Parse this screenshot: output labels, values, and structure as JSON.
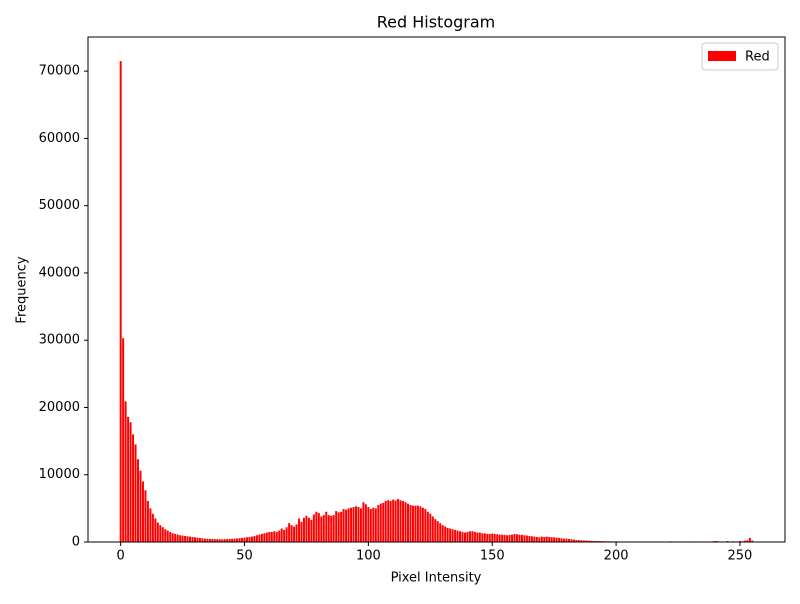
{
  "chart_data": {
    "type": "bar",
    "title": "Red Histogram",
    "x_label": "Pixel Intensity",
    "y_label": "Frequency",
    "x": [
      0,
      1,
      2,
      3,
      4,
      5,
      6,
      7,
      8,
      9,
      10,
      11,
      12,
      13,
      14,
      15,
      16,
      17,
      18,
      19,
      20,
      21,
      22,
      23,
      24,
      25,
      26,
      27,
      28,
      29,
      30,
      31,
      32,
      33,
      34,
      35,
      36,
      37,
      38,
      39,
      40,
      41,
      42,
      43,
      44,
      45,
      46,
      47,
      48,
      49,
      50,
      51,
      52,
      53,
      54,
      55,
      56,
      57,
      58,
      59,
      60,
      61,
      62,
      63,
      64,
      65,
      66,
      67,
      68,
      69,
      70,
      71,
      72,
      73,
      74,
      75,
      76,
      77,
      78,
      79,
      80,
      81,
      82,
      83,
      84,
      85,
      86,
      87,
      88,
      89,
      90,
      91,
      92,
      93,
      94,
      95,
      96,
      97,
      98,
      99,
      100,
      101,
      102,
      103,
      104,
      105,
      106,
      107,
      108,
      109,
      110,
      111,
      112,
      113,
      114,
      115,
      116,
      117,
      118,
      119,
      120,
      121,
      122,
      123,
      124,
      125,
      126,
      127,
      128,
      129,
      130,
      131,
      132,
      133,
      134,
      135,
      136,
      137,
      138,
      139,
      140,
      141,
      142,
      143,
      144,
      145,
      146,
      147,
      148,
      149,
      150,
      151,
      152,
      153,
      154,
      155,
      156,
      157,
      158,
      159,
      160,
      161,
      162,
      163,
      164,
      165,
      166,
      167,
      168,
      169,
      170,
      171,
      172,
      173,
      174,
      175,
      176,
      177,
      178,
      179,
      180,
      181,
      182,
      183,
      184,
      185,
      186,
      187,
      188,
      189,
      190,
      191,
      192,
      193,
      194,
      195,
      196,
      197,
      198,
      199,
      200,
      201,
      202,
      203,
      204,
      205,
      206,
      207,
      208,
      209,
      210,
      211,
      212,
      213,
      214,
      215,
      216,
      217,
      218,
      219,
      220,
      221,
      222,
      223,
      224,
      225,
      226,
      227,
      228,
      229,
      230,
      231,
      232,
      233,
      234,
      235,
      236,
      237,
      238,
      239,
      240,
      241,
      242,
      243,
      244,
      245,
      246,
      247,
      248,
      249,
      250,
      251,
      252,
      253,
      254,
      255
    ],
    "series": [
      {
        "name": "Red",
        "color": "#ff0000",
        "values": [
          71500,
          30300,
          20900,
          18600,
          17800,
          16000,
          14500,
          12300,
          10600,
          9000,
          7700,
          6100,
          5000,
          4200,
          3500,
          2900,
          2500,
          2200,
          1900,
          1700,
          1500,
          1300,
          1200,
          1100,
          1000,
          950,
          900,
          850,
          800,
          750,
          700,
          650,
          600,
          550,
          500,
          480,
          460,
          440,
          430,
          420,
          410,
          400,
          420,
          430,
          450,
          470,
          500,
          520,
          560,
          600,
          650,
          700,
          750,
          800,
          900,
          1000,
          1100,
          1200,
          1300,
          1400,
          1500,
          1500,
          1600,
          1500,
          1700,
          2000,
          1800,
          2200,
          2800,
          2500,
          2300,
          2600,
          3500,
          3000,
          3600,
          3900,
          3600,
          3300,
          4100,
          4500,
          4300,
          3800,
          4000,
          4500,
          4000,
          3900,
          4000,
          4600,
          4400,
          4500,
          4900,
          4800,
          5000,
          5100,
          5200,
          5300,
          5200,
          5000,
          5900,
          5600,
          5200,
          4900,
          5100,
          5000,
          5500,
          5700,
          5800,
          6100,
          6200,
          6100,
          6300,
          6200,
          6400,
          6200,
          6100,
          5900,
          5700,
          5500,
          5400,
          5400,
          5400,
          5300,
          5100,
          4900,
          4500,
          4200,
          3800,
          3400,
          3100,
          2800,
          2500,
          2300,
          2100,
          2000,
          1900,
          1800,
          1700,
          1600,
          1500,
          1400,
          1500,
          1600,
          1600,
          1500,
          1400,
          1400,
          1300,
          1300,
          1200,
          1200,
          1250,
          1200,
          1150,
          1100,
          1100,
          1050,
          1000,
          1050,
          1100,
          1200,
          1150,
          1100,
          1050,
          1000,
          950,
          900,
          850,
          800,
          750,
          700,
          800,
          750,
          800,
          750,
          700,
          700,
          650,
          600,
          550,
          500,
          500,
          450,
          400,
          350,
          300,
          280,
          260,
          240,
          220,
          200,
          180,
          160,
          150,
          140,
          130,
          120,
          110,
          100,
          100,
          90,
          90,
          80,
          70,
          60,
          50,
          40,
          30,
          30,
          25,
          25,
          20,
          20,
          20,
          20,
          20,
          20,
          20,
          20,
          20,
          20,
          20,
          20,
          100,
          20,
          20,
          20,
          20,
          20,
          20,
          20,
          20,
          80,
          20,
          20,
          20,
          20,
          20,
          20,
          20,
          100,
          150,
          120,
          60,
          50,
          40,
          150,
          60,
          100,
          80,
          50,
          150,
          100,
          200,
          250,
          600,
          200
        ]
      }
    ],
    "xlim": [
      -13.19,
      268.19
    ],
    "ylim": [
      0,
      75075
    ],
    "xticks": [
      0,
      50,
      100,
      150,
      200,
      250
    ],
    "yticks": [
      0,
      10000,
      20000,
      30000,
      40000,
      50000,
      60000,
      70000
    ],
    "bar_width": 0.8,
    "legend": "upper right"
  }
}
